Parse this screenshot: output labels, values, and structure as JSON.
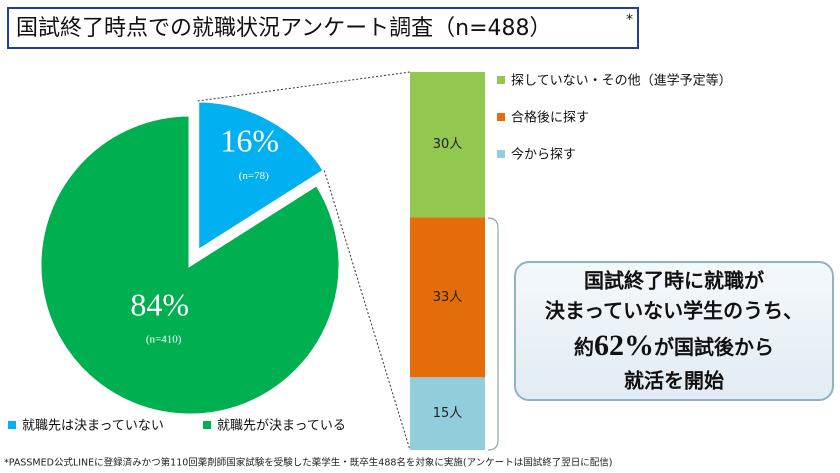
{
  "title": "国試終了時点での就職状況アンケート調査（n=488）",
  "title_mark": "*",
  "footnote": "*PASSMED公式LINEに登録済みかつ第110回薬剤師国家試験を受験した薬学生・既卒生488名を対象に実施(アンケートは国試終了翌日に配信)",
  "callout": {
    "line1": "国試終了時に就職が",
    "line2": "決まっていない学生のうち、",
    "prefix": "約",
    "emphasis": "62%",
    "suffix": "が国試後から",
    "line4": "就活を開始"
  },
  "chart_data": [
    {
      "type": "pie",
      "categories": [
        "就職先は決まっていない",
        "就職先が決まっている"
      ],
      "values": [
        16,
        84
      ],
      "value_labels": [
        "16%",
        "84%"
      ],
      "count_labels": [
        "(n=78)",
        "(n=410)"
      ],
      "colors": [
        "#00b0f0",
        "#00b050"
      ],
      "exploded": 0,
      "legend": "bottom"
    },
    {
      "type": "bar",
      "stacked": true,
      "series": [
        {
          "name": "今から探す",
          "color": "#92cddc",
          "values": [
            15
          ],
          "value_labels": [
            "15人"
          ]
        },
        {
          "name": "合格後に探す",
          "color": "#e46c0a",
          "values": [
            33
          ],
          "value_labels": [
            "33人"
          ]
        },
        {
          "name": "探していない・その他（進学予定等）",
          "color": "#92c84f",
          "values": [
            30
          ],
          "value_labels": [
            "30人"
          ]
        }
      ],
      "legend": "right"
    }
  ]
}
